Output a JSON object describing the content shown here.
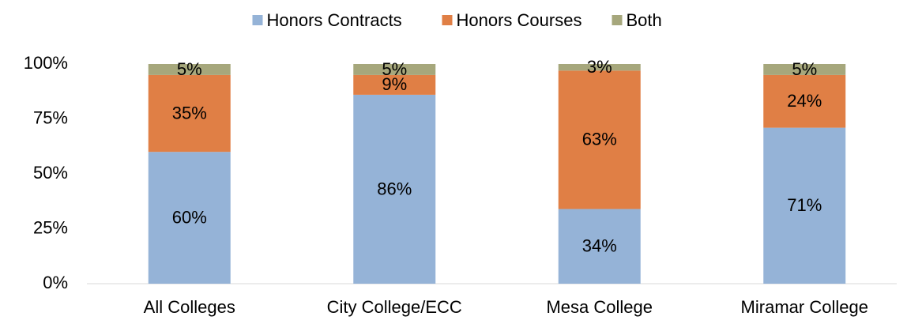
{
  "chart_data": {
    "type": "stacked_bar",
    "categories": [
      "All Colleges",
      "City College/ECC",
      "Mesa College",
      "Miramar College"
    ],
    "series": [
      {
        "name": "Honors Contracts",
        "color": "#95b3d7",
        "values": [
          60,
          86,
          34,
          71
        ],
        "value_labels": [
          "60%",
          "86%",
          "34%",
          "71%"
        ]
      },
      {
        "name": "Honors Courses",
        "color": "#e07f45",
        "values": [
          35,
          9,
          63,
          24
        ],
        "value_labels": [
          "35%",
          "9%",
          "63%",
          "24%"
        ]
      },
      {
        "name": "Both",
        "color": "#a6a77c",
        "values": [
          5,
          5,
          3,
          5
        ],
        "value_labels": [
          "5%",
          "5%",
          "3%",
          "5%"
        ]
      }
    ],
    "ylim": [
      0,
      100
    ],
    "yticks": [
      {
        "value": 0,
        "label": "0%"
      },
      {
        "value": 25,
        "label": "25%"
      },
      {
        "value": 50,
        "label": "50%"
      },
      {
        "value": 75,
        "label": "75%"
      },
      {
        "value": 100,
        "label": "100%"
      }
    ],
    "grid": false,
    "legend": "top"
  }
}
